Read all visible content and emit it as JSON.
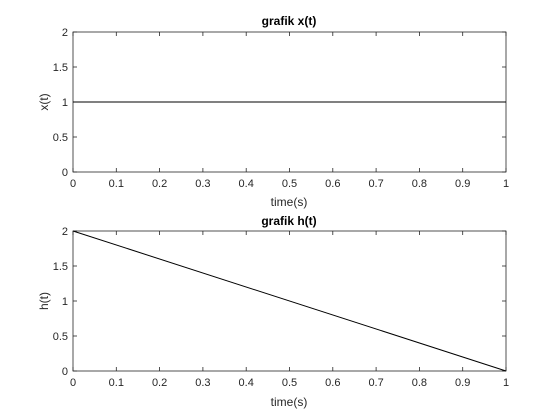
{
  "figure": {
    "background": "#ffffff",
    "axes_color": "#262626",
    "line_color": "#000000"
  },
  "chart_data": [
    {
      "type": "line",
      "title": "grafik x(t)",
      "xlabel": "time(s)",
      "ylabel": "x(t)",
      "xlim": [
        0,
        1
      ],
      "ylim": [
        0,
        2
      ],
      "xticks": [
        "0",
        "0.1",
        "0.2",
        "0.3",
        "0.4",
        "0.5",
        "0.6",
        "0.7",
        "0.8",
        "0.9",
        "1"
      ],
      "yticks": [
        "0",
        "0.5",
        "1",
        "1.5",
        "2"
      ],
      "grid": false,
      "series": [
        {
          "x": [
            0,
            1
          ],
          "y": [
            1,
            1
          ],
          "color": "#000000"
        }
      ]
    },
    {
      "type": "line",
      "title": "grafik h(t)",
      "xlabel": "time(s)",
      "ylabel": "h(t)",
      "xlim": [
        0,
        1
      ],
      "ylim": [
        0,
        2
      ],
      "xticks": [
        "0",
        "0.1",
        "0.2",
        "0.3",
        "0.4",
        "0.5",
        "0.6",
        "0.7",
        "0.8",
        "0.9",
        "1"
      ],
      "yticks": [
        "0",
        "0.5",
        "1",
        "1.5",
        "2"
      ],
      "grid": false,
      "series": [
        {
          "x": [
            0,
            1
          ],
          "y": [
            2,
            0
          ],
          "color": "#000000"
        }
      ]
    }
  ]
}
